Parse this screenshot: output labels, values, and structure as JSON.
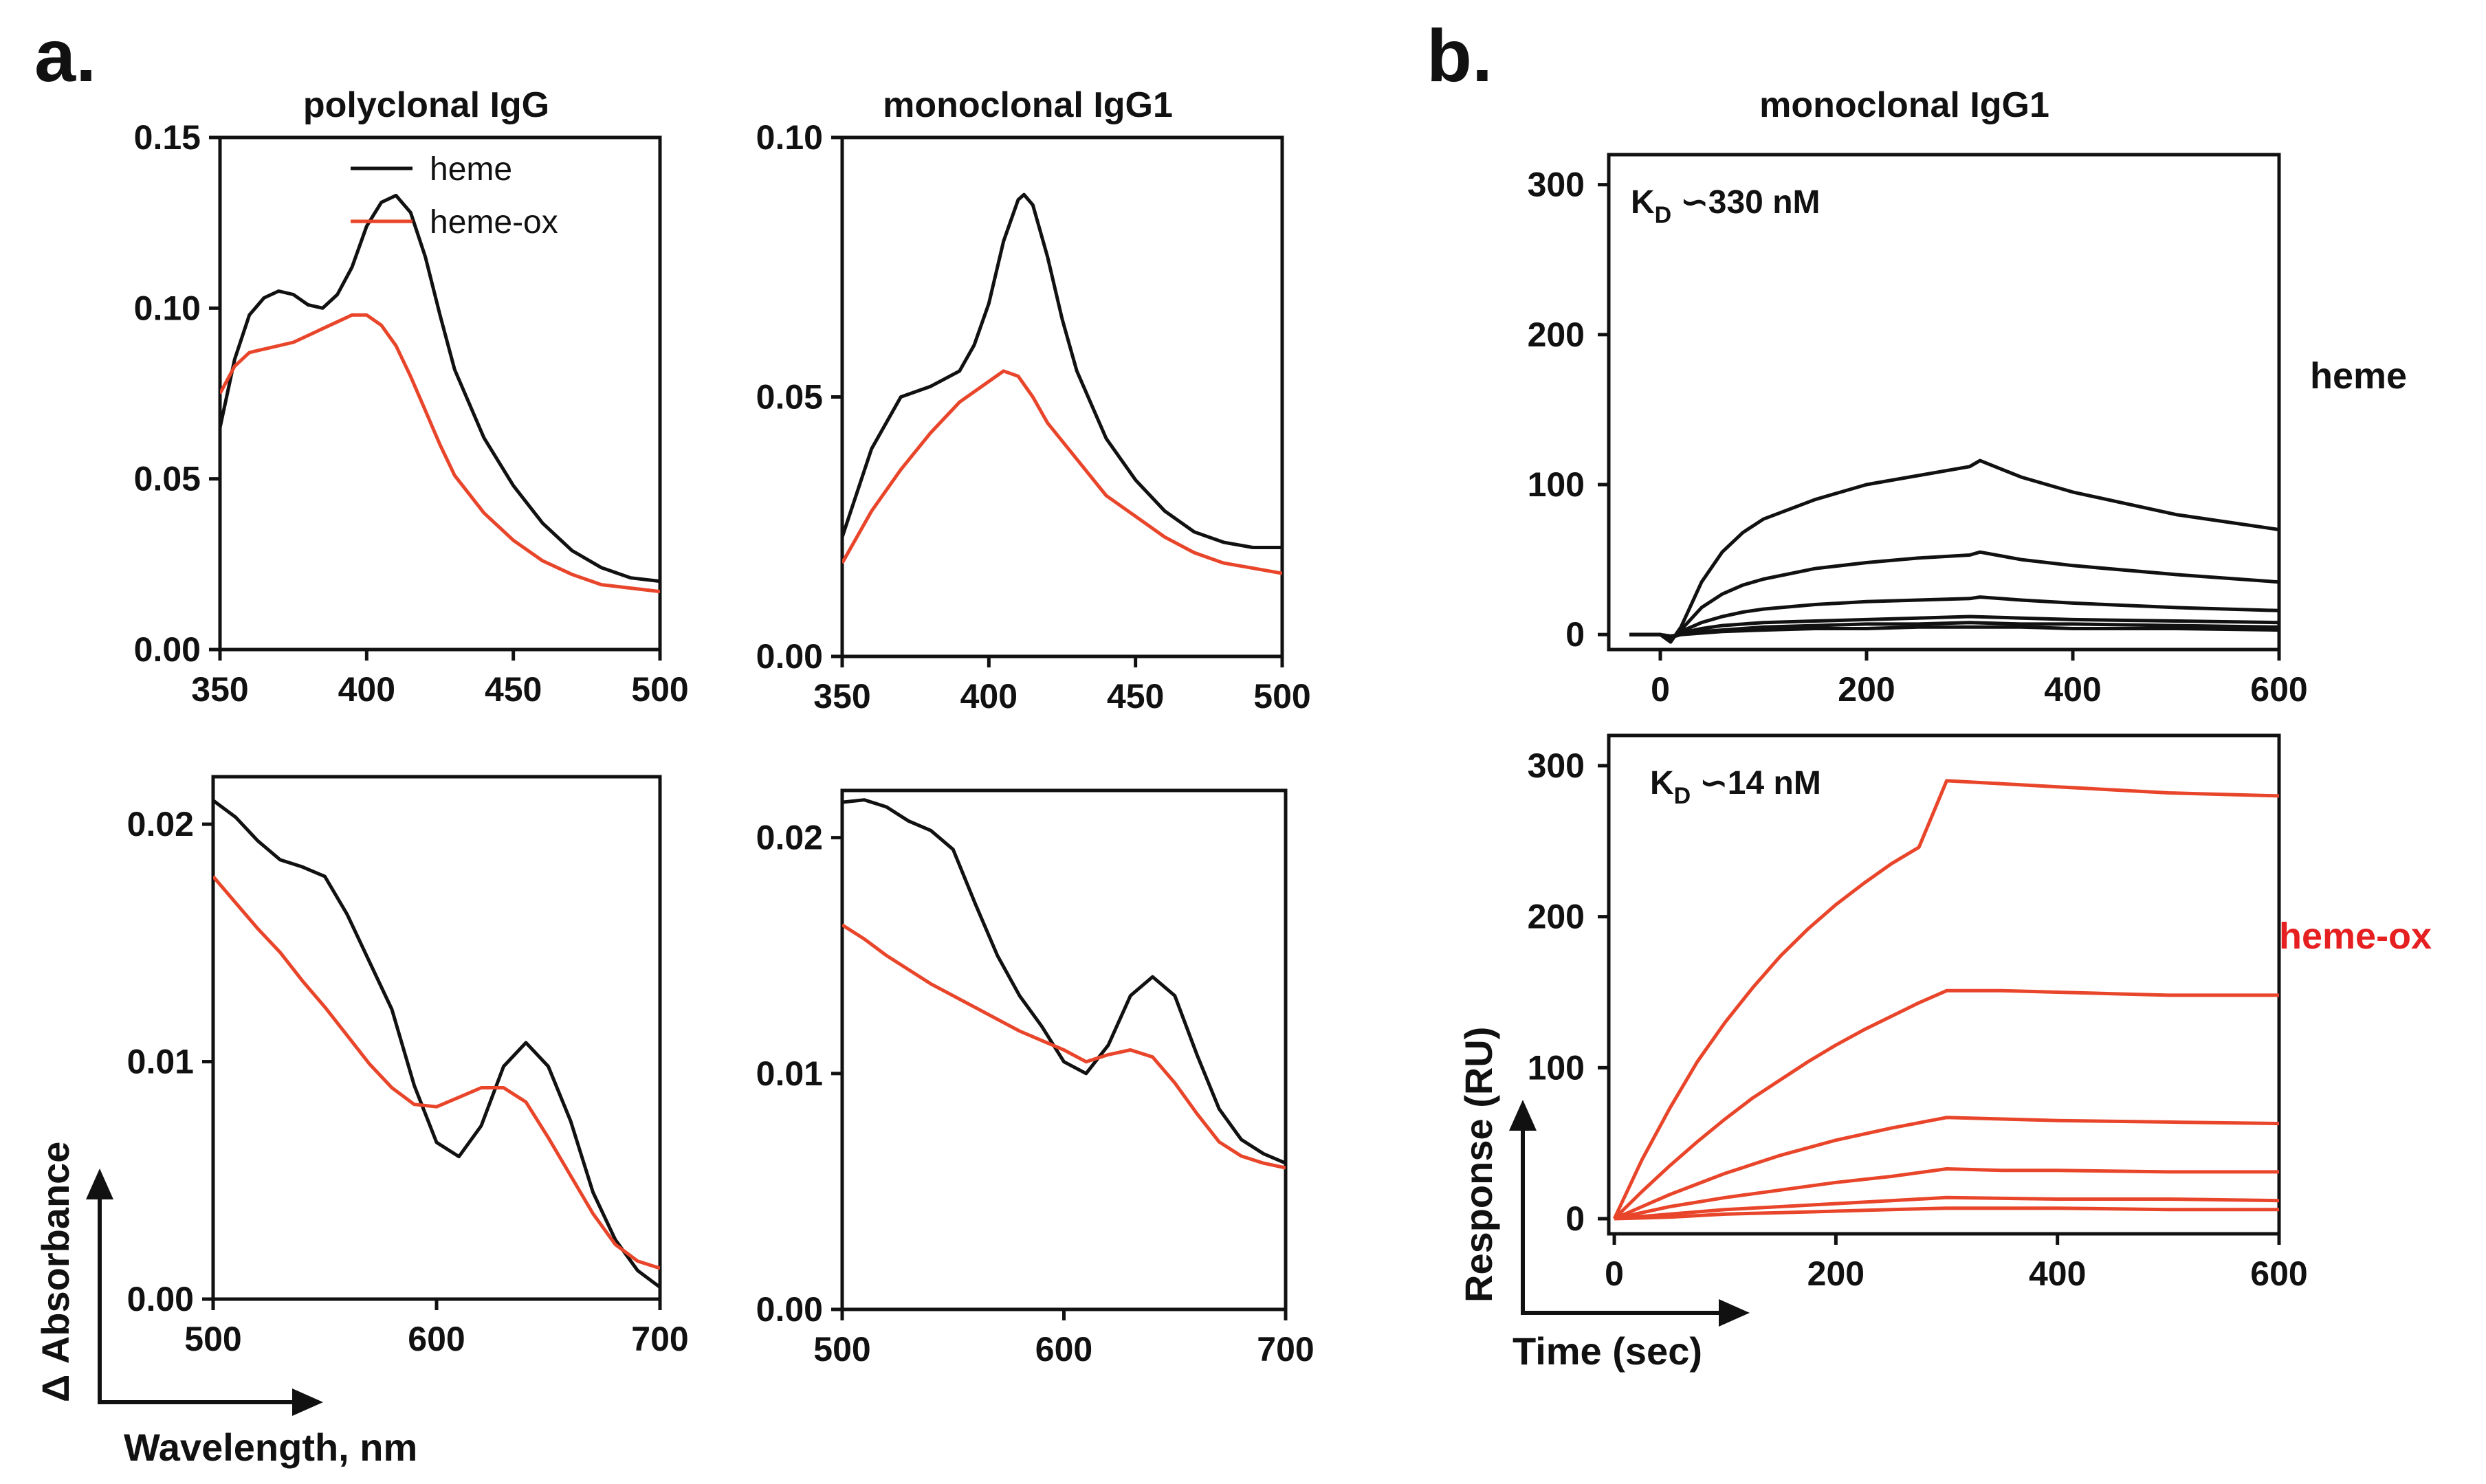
{
  "figure": {
    "panel_a_label": "a.",
    "panel_b_label": "b.",
    "col1_title": "polyclonal IgG",
    "col2_title": "monoclonal IgG1",
    "col3_title": "monoclonal IgG1",
    "a_y_title": "Δ Absorbance",
    "a_x_title": "Wavelength, nm",
    "b_y_title": "Response (RU)",
    "b_x_title": "Time (sec)",
    "row_label_heme": "heme",
    "row_label_hemeox": "heme-ox",
    "kd1_prefix": "K",
    "kd1_sub": "D",
    "kd1_value": " ∽330 nM",
    "kd2_prefix": "K",
    "kd2_sub": "D",
    "kd2_value": " ∽14 nM",
    "legend_heme": "heme",
    "legend_hemeox": "heme-ox"
  },
  "colors": {
    "heme": "#111111",
    "heme_ox": "#e8452a",
    "label_red": "#e62020"
  },
  "chart_data": [
    {
      "id": "a_top_left",
      "type": "line",
      "title": "polyclonal IgG",
      "xlim": [
        350,
        500
      ],
      "ylim": [
        0,
        0.15
      ],
      "xticks": [
        350,
        400,
        450,
        500
      ],
      "xticklabels": [
        "350",
        "400",
        "450",
        "500"
      ],
      "yticks": [
        0,
        0.05,
        0.1,
        0.15
      ],
      "yticklabels": [
        "0.00",
        "0.05",
        "0.10",
        "0.15"
      ],
      "legend": {
        "position": "top-right",
        "entries": [
          "heme",
          "heme-ox"
        ]
      },
      "series": [
        {
          "name": "heme",
          "color": "#111111",
          "x": [
            350,
            355,
            360,
            365,
            370,
            375,
            380,
            385,
            390,
            395,
            400,
            405,
            410,
            415,
            420,
            425,
            430,
            440,
            450,
            460,
            470,
            480,
            490,
            500
          ],
          "y": [
            0.065,
            0.085,
            0.098,
            0.103,
            0.105,
            0.104,
            0.101,
            0.1,
            0.104,
            0.112,
            0.124,
            0.131,
            0.133,
            0.128,
            0.115,
            0.098,
            0.082,
            0.062,
            0.048,
            0.037,
            0.029,
            0.024,
            0.021,
            0.02
          ]
        },
        {
          "name": "heme-ox",
          "color": "#e8452a",
          "x": [
            350,
            355,
            360,
            365,
            370,
            375,
            380,
            385,
            390,
            395,
            400,
            405,
            410,
            415,
            420,
            425,
            430,
            440,
            450,
            460,
            470,
            480,
            490,
            500
          ],
          "y": [
            0.075,
            0.083,
            0.087,
            0.088,
            0.089,
            0.09,
            0.092,
            0.094,
            0.096,
            0.098,
            0.098,
            0.095,
            0.089,
            0.08,
            0.07,
            0.06,
            0.051,
            0.04,
            0.032,
            0.026,
            0.022,
            0.019,
            0.018,
            0.017
          ]
        }
      ]
    },
    {
      "id": "a_top_right",
      "type": "line",
      "title": "monoclonal IgG1",
      "xlim": [
        350,
        500
      ],
      "ylim": [
        0,
        0.1
      ],
      "xticks": [
        350,
        400,
        450,
        500
      ],
      "xticklabels": [
        "350",
        "400",
        "450",
        "500"
      ],
      "yticks": [
        0,
        0.05,
        0.1
      ],
      "yticklabels": [
        "0.00",
        "0.05",
        "0.10"
      ],
      "series": [
        {
          "name": "heme",
          "color": "#111111",
          "x": [
            350,
            360,
            370,
            380,
            390,
            395,
            400,
            405,
            410,
            412,
            415,
            420,
            425,
            430,
            440,
            450,
            460,
            470,
            480,
            490,
            500
          ],
          "y": [
            0.023,
            0.04,
            0.05,
            0.052,
            0.055,
            0.06,
            0.068,
            0.08,
            0.088,
            0.089,
            0.087,
            0.077,
            0.065,
            0.055,
            0.042,
            0.034,
            0.028,
            0.024,
            0.022,
            0.021,
            0.021
          ]
        },
        {
          "name": "heme-ox",
          "color": "#e8452a",
          "x": [
            350,
            360,
            370,
            380,
            390,
            400,
            405,
            410,
            415,
            420,
            430,
            440,
            450,
            460,
            470,
            480,
            490,
            500
          ],
          "y": [
            0.018,
            0.028,
            0.036,
            0.043,
            0.049,
            0.053,
            0.055,
            0.054,
            0.05,
            0.045,
            0.038,
            0.031,
            0.027,
            0.023,
            0.02,
            0.018,
            0.017,
            0.016
          ]
        }
      ]
    },
    {
      "id": "a_bottom_left",
      "type": "line",
      "xlim": [
        500,
        700
      ],
      "ylim": [
        0,
        0.022
      ],
      "xticks": [
        500,
        600,
        700
      ],
      "xticklabels": [
        "500",
        "600",
        "700"
      ],
      "yticks": [
        0,
        0.01,
        0.02
      ],
      "yticklabels": [
        "0.00",
        "0.01",
        "0.02"
      ],
      "series": [
        {
          "name": "heme",
          "color": "#111111",
          "x": [
            500,
            510,
            520,
            530,
            540,
            550,
            560,
            570,
            580,
            590,
            600,
            610,
            620,
            630,
            640,
            650,
            660,
            670,
            680,
            690,
            700
          ],
          "y": [
            0.021,
            0.0203,
            0.0193,
            0.0185,
            0.0182,
            0.0178,
            0.0162,
            0.0142,
            0.0122,
            0.009,
            0.0066,
            0.006,
            0.0073,
            0.0098,
            0.0108,
            0.0098,
            0.0075,
            0.0045,
            0.0025,
            0.0012,
            0.0005
          ]
        },
        {
          "name": "heme-ox",
          "color": "#e8452a",
          "x": [
            500,
            510,
            520,
            530,
            540,
            550,
            560,
            570,
            580,
            590,
            600,
            610,
            620,
            630,
            640,
            650,
            660,
            670,
            680,
            690,
            700
          ],
          "y": [
            0.0178,
            0.0167,
            0.0156,
            0.0146,
            0.0134,
            0.0123,
            0.0111,
            0.0099,
            0.0089,
            0.0082,
            0.0081,
            0.0085,
            0.0089,
            0.0089,
            0.0083,
            0.0068,
            0.0052,
            0.0036,
            0.0023,
            0.0016,
            0.0013
          ]
        }
      ]
    },
    {
      "id": "a_bottom_right",
      "type": "line",
      "xlim": [
        500,
        700
      ],
      "ylim": [
        0,
        0.022
      ],
      "xticks": [
        500,
        600,
        700
      ],
      "xticklabels": [
        "500",
        "600",
        "700"
      ],
      "yticks": [
        0,
        0.01,
        0.02
      ],
      "yticklabels": [
        "0.00",
        "0.01",
        "0.02"
      ],
      "series": [
        {
          "name": "heme",
          "color": "#111111",
          "x": [
            500,
            510,
            520,
            530,
            540,
            550,
            560,
            570,
            580,
            590,
            600,
            610,
            620,
            630,
            640,
            650,
            660,
            670,
            680,
            690,
            700
          ],
          "y": [
            0.0215,
            0.0216,
            0.0213,
            0.0207,
            0.0203,
            0.0195,
            0.0172,
            0.015,
            0.0133,
            0.012,
            0.0105,
            0.01,
            0.0112,
            0.0133,
            0.0141,
            0.0133,
            0.0108,
            0.0085,
            0.0072,
            0.0066,
            0.0062
          ]
        },
        {
          "name": "heme-ox",
          "color": "#e8452a",
          "x": [
            500,
            510,
            520,
            530,
            540,
            550,
            560,
            570,
            580,
            590,
            600,
            610,
            620,
            630,
            640,
            650,
            660,
            670,
            680,
            690,
            700
          ],
          "y": [
            0.0163,
            0.0157,
            0.015,
            0.0144,
            0.0138,
            0.0133,
            0.0128,
            0.0123,
            0.0118,
            0.0114,
            0.011,
            0.0105,
            0.0108,
            0.011,
            0.0107,
            0.0096,
            0.0083,
            0.0071,
            0.0065,
            0.0062,
            0.006
          ]
        }
      ]
    },
    {
      "id": "b_top",
      "type": "line",
      "title": "monoclonal IgG1",
      "xlim": [
        -50,
        600
      ],
      "ylim": [
        -10,
        320
      ],
      "xticks": [
        0,
        200,
        400,
        600
      ],
      "xticklabels": [
        "0",
        "200",
        "400",
        "600"
      ],
      "yticks": [
        0,
        100,
        200,
        300
      ],
      "yticklabels": [
        "0",
        "100",
        "200",
        "300"
      ],
      "annotation": "KD ∽330 nM",
      "series": [
        {
          "name": "c1",
          "color": "#111111",
          "x": [
            -30,
            0,
            10,
            20,
            40,
            60,
            80,
            100,
            150,
            200,
            250,
            300,
            310,
            350,
            400,
            500,
            600
          ],
          "y": [
            0,
            0,
            -5,
            5,
            35,
            55,
            68,
            77,
            90,
            100,
            106,
            112,
            116,
            105,
            95,
            80,
            70
          ]
        },
        {
          "name": "c2",
          "color": "#111111",
          "x": [
            -30,
            0,
            10,
            20,
            40,
            60,
            80,
            100,
            150,
            200,
            250,
            300,
            310,
            350,
            400,
            500,
            600
          ],
          "y": [
            0,
            0,
            -4,
            3,
            18,
            27,
            33,
            37,
            44,
            48,
            51,
            53,
            55,
            50,
            46,
            40,
            35
          ]
        },
        {
          "name": "c3",
          "color": "#111111",
          "x": [
            -30,
            0,
            10,
            20,
            40,
            60,
            80,
            100,
            150,
            200,
            250,
            300,
            310,
            350,
            400,
            500,
            600
          ],
          "y": [
            0,
            0,
            -3,
            2,
            8,
            12,
            15,
            17,
            20,
            22,
            23,
            24,
            25,
            23,
            21,
            18,
            16
          ]
        },
        {
          "name": "c4",
          "color": "#111111",
          "x": [
            -30,
            0,
            10,
            20,
            40,
            60,
            100,
            150,
            200,
            250,
            300,
            350,
            400,
            500,
            600
          ],
          "y": [
            0,
            0,
            -2,
            1,
            4,
            6,
            8,
            9,
            10,
            11,
            12,
            11,
            10,
            9,
            8
          ]
        },
        {
          "name": "c5",
          "color": "#111111",
          "x": [
            -30,
            0,
            10,
            20,
            40,
            60,
            100,
            150,
            200,
            250,
            300,
            350,
            400,
            500,
            600
          ],
          "y": [
            0,
            0,
            -2,
            0,
            2,
            3,
            5,
            6,
            7,
            7,
            8,
            7,
            7,
            6,
            5
          ]
        },
        {
          "name": "c6",
          "color": "#111111",
          "x": [
            -30,
            0,
            10,
            20,
            40,
            60,
            100,
            150,
            200,
            250,
            300,
            350,
            400,
            500,
            600
          ],
          "y": [
            0,
            0,
            -1,
            0,
            1,
            2,
            3,
            4,
            4,
            5,
            5,
            5,
            4,
            4,
            3
          ]
        }
      ]
    },
    {
      "id": "b_bottom",
      "type": "line",
      "xlim": [
        -5,
        600
      ],
      "ylim": [
        -10,
        320
      ],
      "xticks": [
        0,
        200,
        400,
        600
      ],
      "xticklabels": [
        "0",
        "200",
        "400",
        "600"
      ],
      "yticks": [
        0,
        100,
        200,
        300
      ],
      "yticklabels": [
        "0",
        "100",
        "200",
        "300"
      ],
      "annotation": "KD ∽14 nM",
      "series": [
        {
          "name": "c1",
          "color": "#e8452a",
          "x": [
            0,
            25,
            50,
            75,
            100,
            125,
            150,
            175,
            200,
            225,
            250,
            275,
            300,
            350,
            400,
            450,
            500,
            550,
            600
          ],
          "y": [
            0,
            39,
            73,
            104,
            130,
            153,
            174,
            192,
            208,
            222,
            235,
            246,
            290,
            288,
            286,
            284,
            282,
            281,
            280
          ]
        },
        {
          "name": "c2",
          "color": "#e8452a",
          "x": [
            0,
            25,
            50,
            75,
            100,
            125,
            150,
            175,
            200,
            225,
            250,
            275,
            300,
            350,
            400,
            450,
            500,
            550,
            600
          ],
          "y": [
            0,
            18,
            35,
            51,
            66,
            80,
            92,
            104,
            115,
            125,
            134,
            143,
            151,
            151,
            150,
            149,
            148,
            148,
            148
          ]
        },
        {
          "name": "c3",
          "color": "#e8452a",
          "x": [
            0,
            25,
            50,
            75,
            100,
            150,
            200,
            250,
            300,
            350,
            400,
            500,
            600
          ],
          "y": [
            0,
            8,
            16,
            23,
            30,
            42,
            52,
            60,
            67,
            66,
            65,
            64,
            63
          ]
        },
        {
          "name": "c4",
          "color": "#e8452a",
          "x": [
            0,
            25,
            50,
            100,
            150,
            200,
            250,
            300,
            350,
            400,
            500,
            600
          ],
          "y": [
            0,
            4,
            8,
            14,
            19,
            24,
            28,
            33,
            32,
            32,
            31,
            31
          ]
        },
        {
          "name": "c5",
          "color": "#e8452a",
          "x": [
            0,
            50,
            100,
            150,
            200,
            250,
            300,
            400,
            500,
            600
          ],
          "y": [
            0,
            3,
            6,
            8,
            10,
            12,
            14,
            13,
            13,
            12
          ]
        },
        {
          "name": "c6",
          "color": "#e8452a",
          "x": [
            0,
            50,
            100,
            150,
            200,
            250,
            300,
            400,
            500,
            600
          ],
          "y": [
            0,
            1,
            3,
            4,
            5,
            6,
            7,
            7,
            6,
            6
          ]
        }
      ]
    }
  ]
}
